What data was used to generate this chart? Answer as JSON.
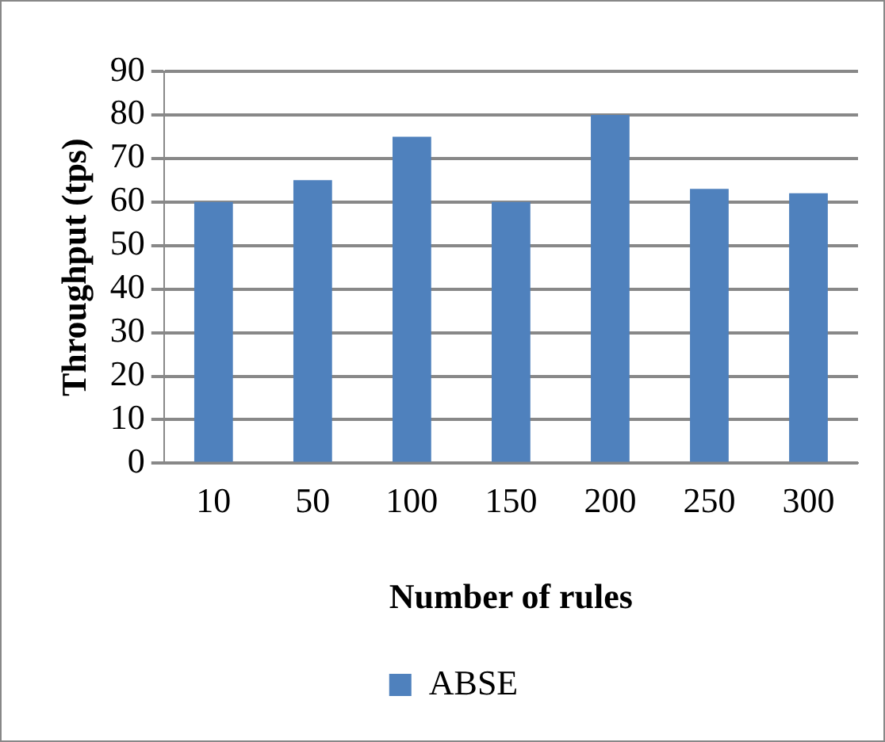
{
  "chart_data": {
    "type": "bar",
    "xlabel": "Number of rules",
    "ylabel": "Throughput (tps)",
    "categories": [
      "10",
      "50",
      "100",
      "150",
      "200",
      "250",
      "300"
    ],
    "series": [
      {
        "name": "ABSE",
        "color": "#4f81bd",
        "values": [
          60,
          65,
          75,
          60,
          80,
          63,
          62
        ]
      }
    ],
    "ylim": [
      0,
      90
    ],
    "yticks": [
      0,
      10,
      20,
      30,
      40,
      50,
      60,
      70,
      80,
      90
    ],
    "grid": "y",
    "legend": "bottom"
  }
}
